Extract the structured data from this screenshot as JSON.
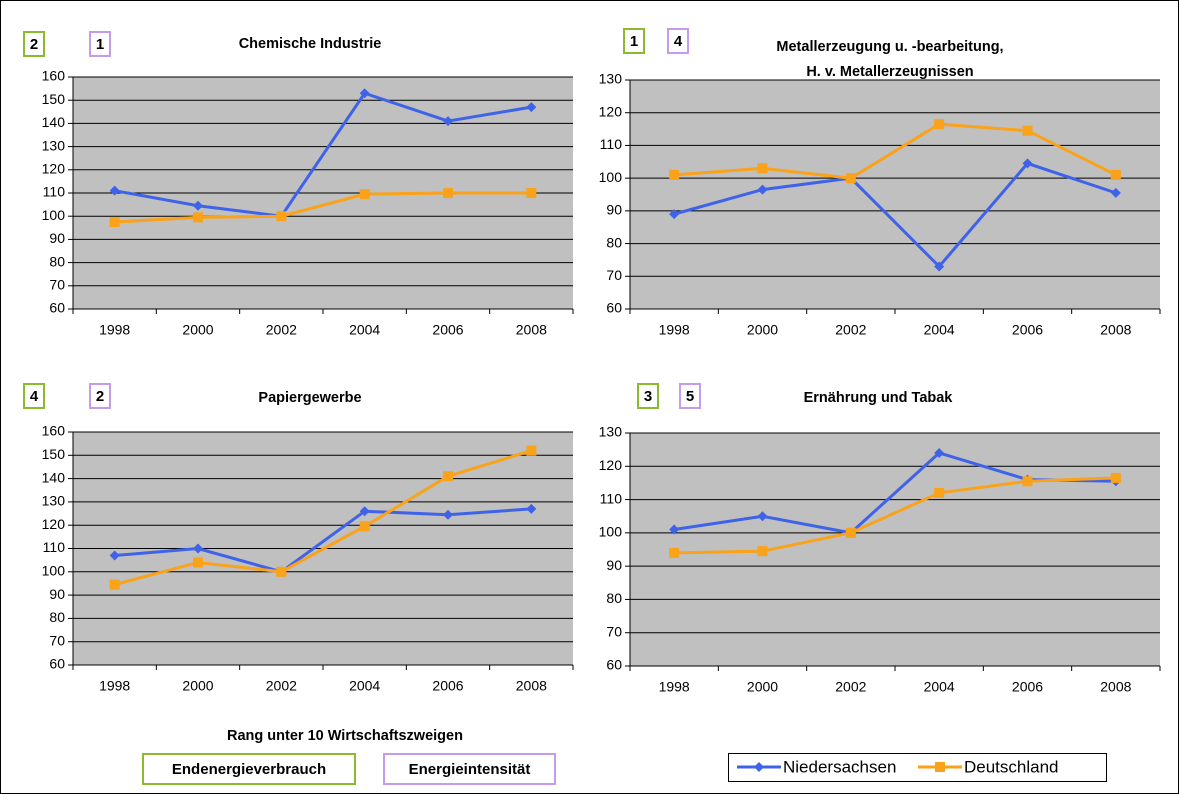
{
  "chart_data": [
    {
      "type": "line",
      "title": [
        "Chemische Industrie"
      ],
      "ranks": [
        2,
        1
      ],
      "categories": [
        "1998",
        "2000",
        "2002",
        "2004",
        "2006",
        "2008"
      ],
      "series": [
        {
          "name": "Niedersachsen",
          "color": "#3f63e8",
          "marker": "diamond",
          "values": [
            111,
            104.5,
            100,
            153,
            141,
            147
          ]
        },
        {
          "name": "Deutschland",
          "color": "#f9a21a",
          "marker": "square",
          "values": [
            97.5,
            99.5,
            100,
            109.5,
            110,
            110
          ]
        }
      ],
      "ylim": [
        60,
        160
      ],
      "yticks": [
        60,
        70,
        80,
        90,
        100,
        110,
        120,
        130,
        140,
        150,
        160
      ],
      "grid": true
    },
    {
      "type": "line",
      "title": [
        "Metallerzeugung u. -bearbeitung,",
        "H. v. Metallerzeugnissen"
      ],
      "ranks": [
        1,
        4
      ],
      "categories": [
        "1998",
        "2000",
        "2002",
        "2004",
        "2006",
        "2008"
      ],
      "series": [
        {
          "name": "Niedersachsen",
          "color": "#3f63e8",
          "marker": "diamond",
          "values": [
            89,
            96.5,
            100,
            73,
            104.5,
            95.5
          ]
        },
        {
          "name": "Deutschland",
          "color": "#f9a21a",
          "marker": "square",
          "values": [
            101,
            103,
            100,
            116.5,
            114.5,
            101
          ]
        }
      ],
      "ylim": [
        60,
        130
      ],
      "yticks": [
        60,
        70,
        80,
        90,
        100,
        110,
        120,
        130
      ],
      "grid": true
    },
    {
      "type": "line",
      "title": [
        "Papiergewerbe"
      ],
      "ranks": [
        4,
        2
      ],
      "categories": [
        "1998",
        "2000",
        "2002",
        "2004",
        "2006",
        "2008"
      ],
      "series": [
        {
          "name": "Niedersachsen",
          "color": "#3f63e8",
          "marker": "diamond",
          "values": [
            107,
            110,
            100,
            126,
            124.5,
            127
          ]
        },
        {
          "name": "Deutschland",
          "color": "#f9a21a",
          "marker": "square",
          "values": [
            94.5,
            104,
            100,
            119.5,
            141,
            152
          ]
        }
      ],
      "ylim": [
        60,
        160
      ],
      "yticks": [
        60,
        70,
        80,
        90,
        100,
        110,
        120,
        130,
        140,
        150,
        160
      ],
      "grid": true
    },
    {
      "type": "line",
      "title": [
        "Ernährung und Tabak"
      ],
      "ranks": [
        3,
        5
      ],
      "categories": [
        "1998",
        "2000",
        "2002",
        "2004",
        "2006",
        "2008"
      ],
      "series": [
        {
          "name": "Niedersachsen",
          "color": "#3f63e8",
          "marker": "diamond",
          "values": [
            101,
            105,
            100,
            124,
            116,
            115.5
          ]
        },
        {
          "name": "Deutschland",
          "color": "#f9a21a",
          "marker": "square",
          "values": [
            94,
            94.5,
            100,
            112,
            115.5,
            116.5
          ]
        }
      ],
      "ylim": [
        60,
        130
      ],
      "yticks": [
        60,
        70,
        80,
        90,
        100,
        110,
        120,
        130
      ],
      "grid": true
    }
  ],
  "rank_legend": {
    "title": "Rang unter 10 Wirtschaftszweigen",
    "items": [
      {
        "label": "Endenergieverbrauch",
        "color": "#8cba2e"
      },
      {
        "label": "Energieintensität",
        "color": "#c59cec"
      }
    ]
  }
}
